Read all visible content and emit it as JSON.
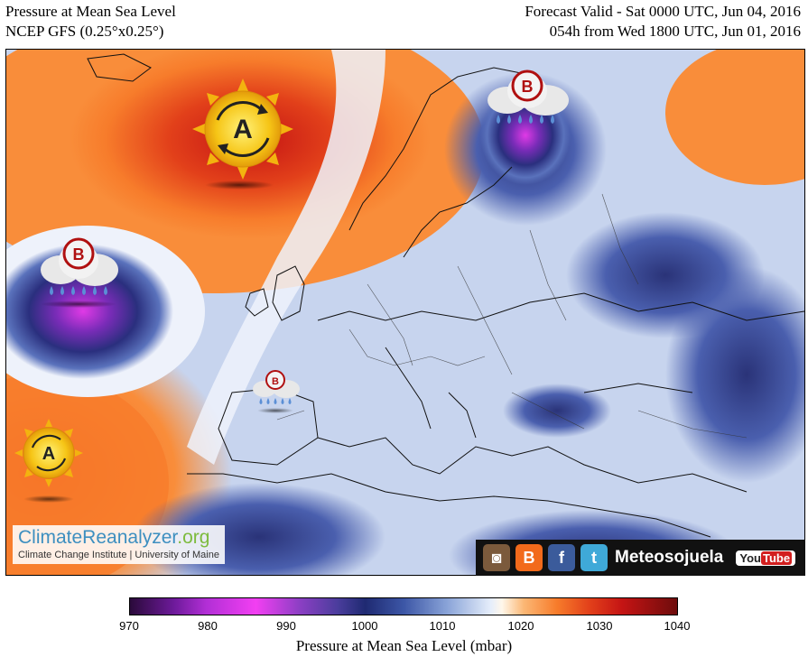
{
  "header": {
    "title_line1": "Pressure at Mean Sea Level",
    "title_line2": "NCEP GFS (0.25°x0.25°)",
    "valid_line1": "Forecast Valid - Sat 0000 UTC, Jun 04, 2016",
    "valid_line2": "054h from Wed 1800 UTC, Jun 01, 2016"
  },
  "pressure_systems": [
    {
      "label": "A",
      "type": "high",
      "region": "North Atlantic (south of Iceland)"
    },
    {
      "label": "B",
      "type": "low",
      "region": "Atlantic west of Ireland"
    },
    {
      "label": "B",
      "type": "low",
      "region": "Iberian Peninsula"
    },
    {
      "label": "B",
      "type": "low",
      "region": "Northern Scandinavia / Barents"
    },
    {
      "label": "A",
      "type": "high",
      "region": "Azores"
    }
  ],
  "watermark": {
    "brand_part1": "ClimateReanalyzer",
    "brand_part2": ".org",
    "subtitle": "Climate Change Institute | University of Maine"
  },
  "social": {
    "handle": "Meteosojuela",
    "icons": [
      "instagram-icon",
      "blogger-icon",
      "facebook-icon",
      "twitter-icon",
      "youtube-icon"
    ],
    "youtube_text_a": "You",
    "youtube_text_b": "Tube"
  },
  "colorbar": {
    "ticks": [
      "970",
      "980",
      "990",
      "1000",
      "1010",
      "1020",
      "1030",
      "1040"
    ],
    "title": "Pressure at Mean Sea Level (mbar)",
    "min": 970,
    "max": 1040
  },
  "colors": {
    "high_orange": "#f77c2b",
    "high_red": "#d62a14",
    "low_blue": "#3c4fa0",
    "low_magenta": "#e03ae6",
    "neutral": "#e6eefb"
  }
}
